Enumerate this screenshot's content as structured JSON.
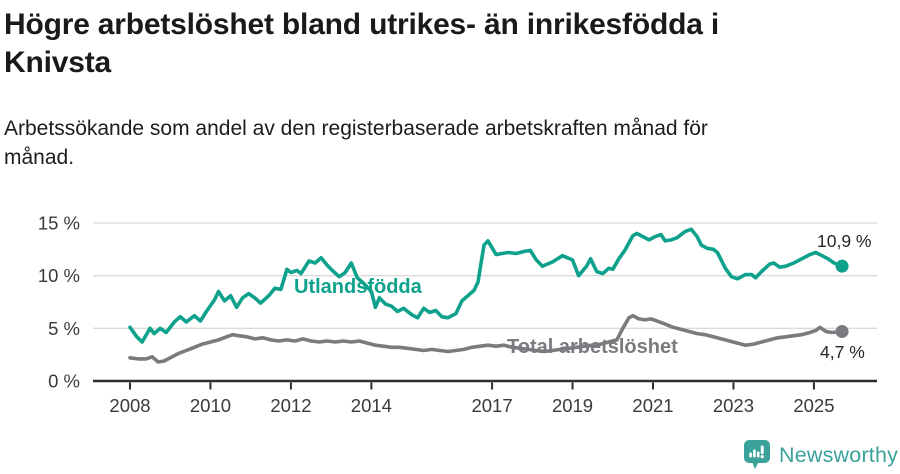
{
  "header": {
    "title": "Högre arbetslöshet bland utrikes- än inrikesfödda i Knivsta",
    "subtitle": "Arbetssökande som andel av den registerbaserade arbetskraften månad för månad."
  },
  "chart_data": {
    "type": "line",
    "title": "Högre arbetslöshet bland utrikes- än inrikesfödda i Knivsta",
    "subtitle": "Arbetssökande som andel av den registerbaserade arbetskraften månad för månad.",
    "x_unit": "year (monthly observations)",
    "xlim": [
      2007.05,
      2026.55
    ],
    "ylim": [
      0,
      15
    ],
    "grid": "horizontal",
    "legend_position": "inline-labels-on-lines",
    "y_ticks": [
      {
        "value": 0,
        "label": "0 %"
      },
      {
        "value": 5,
        "label": "5 %"
      },
      {
        "value": 10,
        "label": "10 %"
      },
      {
        "value": 15,
        "label": "15 %"
      }
    ],
    "x_ticks": [
      {
        "value": 2008,
        "label": "2008"
      },
      {
        "value": 2010,
        "label": "2010"
      },
      {
        "value": 2012,
        "label": "2012"
      },
      {
        "value": 2014,
        "label": "2014"
      },
      {
        "value": 2017,
        "label": "2017"
      },
      {
        "value": 2019,
        "label": "2019"
      },
      {
        "value": 2021,
        "label": "2021"
      },
      {
        "value": 2023,
        "label": "2023"
      },
      {
        "value": 2025,
        "label": "2025"
      }
    ],
    "series": [
      {
        "name": "Utlandsfödda",
        "color": "#0EA28C",
        "end_label": "10,9 %",
        "end_value": 10.9,
        "points": [
          [
            2008.0,
            5.1
          ],
          [
            2008.17,
            4.2
          ],
          [
            2008.3,
            3.7
          ],
          [
            2008.5,
            5.0
          ],
          [
            2008.6,
            4.5
          ],
          [
            2008.75,
            5.0
          ],
          [
            2008.9,
            4.6
          ],
          [
            2009.1,
            5.6
          ],
          [
            2009.25,
            6.1
          ],
          [
            2009.4,
            5.6
          ],
          [
            2009.6,
            6.2
          ],
          [
            2009.75,
            5.7
          ],
          [
            2009.9,
            6.6
          ],
          [
            2010.1,
            7.7
          ],
          [
            2010.2,
            8.5
          ],
          [
            2010.35,
            7.6
          ],
          [
            2010.5,
            8.1
          ],
          [
            2010.65,
            7.0
          ],
          [
            2010.8,
            7.9
          ],
          [
            2010.95,
            8.3
          ],
          [
            2011.1,
            7.9
          ],
          [
            2011.25,
            7.4
          ],
          [
            2011.45,
            8.1
          ],
          [
            2011.6,
            8.8
          ],
          [
            2011.75,
            8.7
          ],
          [
            2011.9,
            10.6
          ],
          [
            2012.0,
            10.3
          ],
          [
            2012.15,
            10.5
          ],
          [
            2012.25,
            10.2
          ],
          [
            2012.45,
            11.4
          ],
          [
            2012.6,
            11.2
          ],
          [
            2012.75,
            11.7
          ],
          [
            2012.9,
            11.0
          ],
          [
            2013.0,
            10.6
          ],
          [
            2013.2,
            9.9
          ],
          [
            2013.35,
            10.3
          ],
          [
            2013.5,
            11.2
          ],
          [
            2013.65,
            9.8
          ],
          [
            2013.8,
            9.3
          ],
          [
            2014.0,
            8.5
          ],
          [
            2014.1,
            7.0
          ],
          [
            2014.2,
            7.9
          ],
          [
            2014.35,
            7.3
          ],
          [
            2014.5,
            7.1
          ],
          [
            2014.65,
            6.6
          ],
          [
            2014.8,
            6.9
          ],
          [
            2015.0,
            6.3
          ],
          [
            2015.15,
            6.0
          ],
          [
            2015.3,
            6.9
          ],
          [
            2015.45,
            6.5
          ],
          [
            2015.6,
            6.7
          ],
          [
            2015.75,
            6.1
          ],
          [
            2015.9,
            6.0
          ],
          [
            2016.1,
            6.4
          ],
          [
            2016.25,
            7.6
          ],
          [
            2016.4,
            8.1
          ],
          [
            2016.55,
            8.6
          ],
          [
            2016.65,
            9.4
          ],
          [
            2016.8,
            12.9
          ],
          [
            2016.9,
            13.3
          ],
          [
            2017.1,
            12.0
          ],
          [
            2017.25,
            12.1
          ],
          [
            2017.4,
            12.2
          ],
          [
            2017.6,
            12.1
          ],
          [
            2017.8,
            12.3
          ],
          [
            2017.95,
            12.4
          ],
          [
            2018.1,
            11.5
          ],
          [
            2018.25,
            10.9
          ],
          [
            2018.5,
            11.3
          ],
          [
            2018.75,
            11.9
          ],
          [
            2019.0,
            11.5
          ],
          [
            2019.15,
            10.0
          ],
          [
            2019.35,
            10.9
          ],
          [
            2019.45,
            11.6
          ],
          [
            2019.6,
            10.4
          ],
          [
            2019.75,
            10.2
          ],
          [
            2019.9,
            10.7
          ],
          [
            2020.0,
            10.6
          ],
          [
            2020.15,
            11.6
          ],
          [
            2020.3,
            12.4
          ],
          [
            2020.5,
            13.8
          ],
          [
            2020.6,
            14.0
          ],
          [
            2020.75,
            13.7
          ],
          [
            2020.9,
            13.4
          ],
          [
            2021.05,
            13.7
          ],
          [
            2021.2,
            13.9
          ],
          [
            2021.3,
            13.3
          ],
          [
            2021.45,
            13.4
          ],
          [
            2021.6,
            13.6
          ],
          [
            2021.8,
            14.2
          ],
          [
            2021.95,
            14.4
          ],
          [
            2022.1,
            13.7
          ],
          [
            2022.2,
            12.9
          ],
          [
            2022.35,
            12.6
          ],
          [
            2022.5,
            12.5
          ],
          [
            2022.6,
            12.2
          ],
          [
            2022.8,
            10.7
          ],
          [
            2022.95,
            9.9
          ],
          [
            2023.1,
            9.7
          ],
          [
            2023.3,
            10.1
          ],
          [
            2023.45,
            10.1
          ],
          [
            2023.55,
            9.8
          ],
          [
            2023.7,
            10.4
          ],
          [
            2023.9,
            11.1
          ],
          [
            2024.0,
            11.2
          ],
          [
            2024.15,
            10.8
          ],
          [
            2024.3,
            10.9
          ],
          [
            2024.5,
            11.2
          ],
          [
            2024.7,
            11.6
          ],
          [
            2024.9,
            12.0
          ],
          [
            2025.05,
            12.2
          ],
          [
            2025.2,
            11.9
          ],
          [
            2025.35,
            11.6
          ],
          [
            2025.5,
            11.2
          ],
          [
            2025.7,
            10.9
          ]
        ]
      },
      {
        "name": "Total arbetslöshet",
        "color": "#7C7A7E",
        "end_label": "4,7 %",
        "end_value": 4.7,
        "points": [
          [
            2008.0,
            2.2
          ],
          [
            2008.2,
            2.1
          ],
          [
            2008.4,
            2.1
          ],
          [
            2008.55,
            2.3
          ],
          [
            2008.7,
            1.8
          ],
          [
            2008.85,
            1.9
          ],
          [
            2009.0,
            2.2
          ],
          [
            2009.2,
            2.6
          ],
          [
            2009.4,
            2.9
          ],
          [
            2009.6,
            3.2
          ],
          [
            2009.8,
            3.5
          ],
          [
            2010.0,
            3.7
          ],
          [
            2010.2,
            3.9
          ],
          [
            2010.4,
            4.2
          ],
          [
            2010.55,
            4.4
          ],
          [
            2010.7,
            4.3
          ],
          [
            2010.9,
            4.2
          ],
          [
            2011.1,
            4.0
          ],
          [
            2011.3,
            4.1
          ],
          [
            2011.5,
            3.9
          ],
          [
            2011.7,
            3.8
          ],
          [
            2011.9,
            3.9
          ],
          [
            2012.1,
            3.8
          ],
          [
            2012.3,
            4.0
          ],
          [
            2012.5,
            3.8
          ],
          [
            2012.7,
            3.7
          ],
          [
            2012.9,
            3.8
          ],
          [
            2013.1,
            3.7
          ],
          [
            2013.3,
            3.8
          ],
          [
            2013.5,
            3.7
          ],
          [
            2013.7,
            3.8
          ],
          [
            2013.9,
            3.6
          ],
          [
            2014.1,
            3.4
          ],
          [
            2014.3,
            3.3
          ],
          [
            2014.5,
            3.2
          ],
          [
            2014.7,
            3.2
          ],
          [
            2014.9,
            3.1
          ],
          [
            2015.1,
            3.0
          ],
          [
            2015.3,
            2.9
          ],
          [
            2015.5,
            3.0
          ],
          [
            2015.7,
            2.9
          ],
          [
            2015.9,
            2.8
          ],
          [
            2016.1,
            2.9
          ],
          [
            2016.3,
            3.0
          ],
          [
            2016.5,
            3.2
          ],
          [
            2016.7,
            3.3
          ],
          [
            2016.9,
            3.4
          ],
          [
            2017.1,
            3.3
          ],
          [
            2017.3,
            3.4
          ],
          [
            2017.5,
            3.2
          ],
          [
            2017.7,
            3.1
          ],
          [
            2017.9,
            3.0
          ],
          [
            2018.1,
            2.9
          ],
          [
            2018.3,
            2.8
          ],
          [
            2018.5,
            2.9
          ],
          [
            2018.7,
            3.0
          ],
          [
            2018.9,
            3.1
          ],
          [
            2019.1,
            3.2
          ],
          [
            2019.3,
            3.3
          ],
          [
            2019.5,
            3.4
          ],
          [
            2019.7,
            3.5
          ],
          [
            2019.9,
            3.7
          ],
          [
            2020.1,
            3.9
          ],
          [
            2020.25,
            5.0
          ],
          [
            2020.4,
            6.0
          ],
          [
            2020.5,
            6.2
          ],
          [
            2020.65,
            5.9
          ],
          [
            2020.8,
            5.8
          ],
          [
            2020.95,
            5.9
          ],
          [
            2021.1,
            5.7
          ],
          [
            2021.3,
            5.4
          ],
          [
            2021.5,
            5.1
          ],
          [
            2021.7,
            4.9
          ],
          [
            2021.9,
            4.7
          ],
          [
            2022.1,
            4.5
          ],
          [
            2022.3,
            4.4
          ],
          [
            2022.5,
            4.2
          ],
          [
            2022.7,
            4.0
          ],
          [
            2022.9,
            3.8
          ],
          [
            2023.1,
            3.6
          ],
          [
            2023.3,
            3.4
          ],
          [
            2023.5,
            3.5
          ],
          [
            2023.7,
            3.7
          ],
          [
            2023.9,
            3.9
          ],
          [
            2024.1,
            4.1
          ],
          [
            2024.3,
            4.2
          ],
          [
            2024.5,
            4.3
          ],
          [
            2024.7,
            4.4
          ],
          [
            2024.9,
            4.6
          ],
          [
            2025.05,
            4.8
          ],
          [
            2025.15,
            5.1
          ],
          [
            2025.3,
            4.7
          ],
          [
            2025.45,
            4.6
          ],
          [
            2025.7,
            4.7
          ]
        ]
      }
    ]
  },
  "footer": {
    "brand": "Newsworthy",
    "brand_color": "#3BA29A",
    "logo_icon": "newsworthy-speech-bubble-bar-chart-icon"
  },
  "style": {
    "gridline_color": "#dadada",
    "axis_color": "#2f2f2f",
    "tick_label_color": "#3a3a3a",
    "value_label_color": "#262626"
  }
}
